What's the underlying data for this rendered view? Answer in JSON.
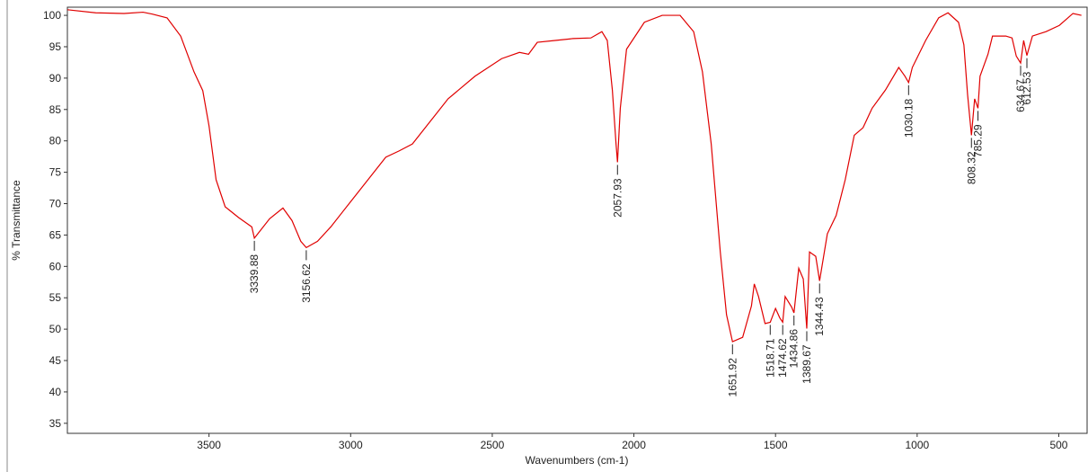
{
  "chart_data": {
    "type": "line",
    "xlabel": "Wavenumbers (cm-1)",
    "ylabel": "% Transmittance",
    "color": "#e00000",
    "xlim": [
      4000,
      400
    ],
    "ylim": [
      33.4,
      101.3
    ],
    "xticks": [
      3500,
      3000,
      2500,
      2000,
      1500,
      1000,
      500
    ],
    "yticks": [
      35,
      40,
      45,
      50,
      55,
      60,
      65,
      70,
      75,
      80,
      85,
      90,
      95,
      100
    ],
    "x": [
      4000,
      3900,
      3800,
      3733,
      3700,
      3648,
      3600,
      3553,
      3522,
      3500,
      3475,
      3443,
      3396,
      3349,
      3339.88,
      3286,
      3239,
      3207,
      3176,
      3156.62,
      3117,
      3070,
      3002,
      2939,
      2876,
      2829,
      2782,
      2719,
      2656,
      2561,
      2467,
      2404,
      2372,
      2341,
      2278,
      2215,
      2152,
      2113,
      2094,
      2076,
      2063,
      2057.93,
      2048,
      2026,
      1963,
      1900,
      1837,
      1789,
      1758,
      1727,
      1695,
      1673,
      1651.92,
      1616,
      1585,
      1575,
      1560,
      1537,
      1518.71,
      1500,
      1485,
      1474.62,
      1466,
      1443,
      1434.86,
      1418,
      1402,
      1389.67,
      1380,
      1358,
      1344.43,
      1317,
      1286,
      1254,
      1222,
      1191,
      1159,
      1112,
      1065,
      1043,
      1030.18,
      1017,
      970,
      924,
      891,
      854,
      835,
      822,
      808.32,
      797,
      785.29,
      778,
      750,
      734,
      687,
      665,
      650,
      634.67,
      624,
      612.53,
      593,
      545,
      498,
      450,
      420
    ],
    "values": [
      100.9,
      100.4,
      100.3,
      100.5,
      100.2,
      99.6,
      96.7,
      91,
      88,
      82.4,
      73.8,
      69.5,
      67.8,
      66.3,
      64.5,
      67.6,
      69.3,
      67.3,
      64,
      63,
      64,
      66.3,
      70.2,
      73.8,
      77.4,
      78.4,
      79.5,
      83.1,
      86.7,
      90.3,
      93.1,
      94.1,
      93.8,
      95.7,
      96,
      96.3,
      96.4,
      97.4,
      96,
      88.1,
      79.5,
      76.6,
      85.2,
      94.6,
      98.9,
      100,
      100,
      97.4,
      91,
      79.5,
      62.3,
      52.3,
      48,
      48.7,
      53.7,
      57.2,
      55.2,
      50.9,
      51.1,
      53.3,
      51.8,
      51.1,
      55.2,
      53.5,
      52.6,
      59.7,
      58,
      50.1,
      62.3,
      61.6,
      57.7,
      65.2,
      68.1,
      73.8,
      80.9,
      82.1,
      85.2,
      88.1,
      91.7,
      90.3,
      89.3,
      91.7,
      96,
      99.6,
      100.4,
      98.9,
      95.3,
      87.4,
      80.9,
      86.7,
      85.2,
      90.3,
      93.8,
      96.7,
      96.7,
      96.4,
      93.5,
      92.4,
      96,
      93.6,
      96.7,
      97.4,
      98.4,
      100.3,
      100
    ],
    "peaks": [
      {
        "x": 3339.88,
        "y": 64.5
      },
      {
        "x": 3156.62,
        "y": 63
      },
      {
        "x": 2057.93,
        "y": 76.6
      },
      {
        "x": 1651.92,
        "y": 48
      },
      {
        "x": 1518.71,
        "y": 51.1
      },
      {
        "x": 1474.62,
        "y": 51.1
      },
      {
        "x": 1434.86,
        "y": 52.6
      },
      {
        "x": 1389.67,
        "y": 50.1
      },
      {
        "x": 1344.43,
        "y": 57.7
      },
      {
        "x": 1030.18,
        "y": 89.3
      },
      {
        "x": 808.32,
        "y": 80.9
      },
      {
        "x": 785.29,
        "y": 85.2
      },
      {
        "x": 634.67,
        "y": 92.4
      },
      {
        "x": 612.53,
        "y": 93.6
      }
    ]
  }
}
